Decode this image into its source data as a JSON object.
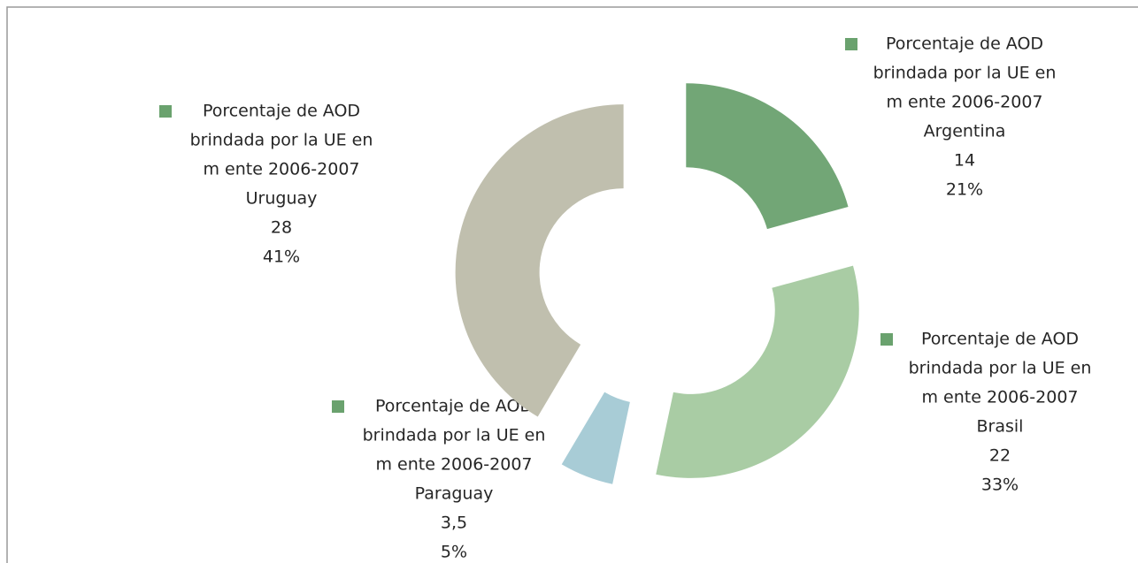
{
  "chart_data": {
    "type": "donut",
    "series_name_lines": [
      "Porcentaje de AOD",
      "brindada por la UE en",
      "m ente 2006-2007"
    ],
    "categories": [
      "Argentina",
      "Brasil",
      "Paraguay",
      "Uruguay"
    ],
    "values": [
      14,
      22,
      3.5,
      28
    ],
    "value_labels": [
      "14",
      "22",
      "3,5",
      "28"
    ],
    "percent_labels": [
      "21%",
      "33%",
      "5%",
      "41%"
    ],
    "colors": [
      "#72a676",
      "#a9cca4",
      "#a8ccd6",
      "#c0bfae"
    ],
    "legend_marker_color": "#6aa26e"
  }
}
